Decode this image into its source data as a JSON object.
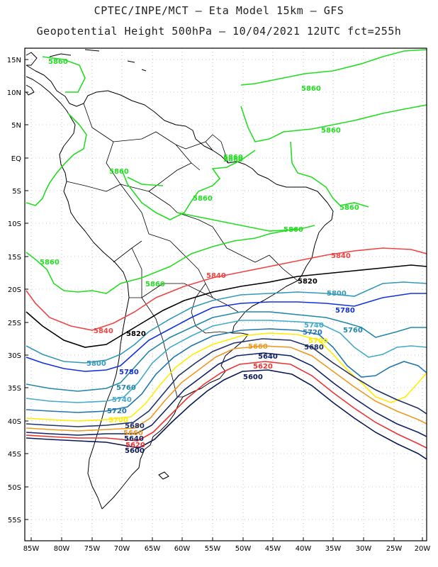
{
  "header": {
    "title_line1": "CPTEC/INPE/MCT –  Eta Model 15km – GFS",
    "title_line2": "Geopotential Height 500hPa – 10/04/2021 12UTC fct=255h"
  },
  "axes": {
    "lon_labels": [
      "85W",
      "80W",
      "75W",
      "70W",
      "65W",
      "60W",
      "55W",
      "50W",
      "45W",
      "40W",
      "35W",
      "30W",
      "25W",
      "20W"
    ],
    "lat_labels": [
      "15N",
      "10N",
      "5N",
      "EQ",
      "5S",
      "10S",
      "15S",
      "20S",
      "25S",
      "30S",
      "35S",
      "40S",
      "45S",
      "50S",
      "55S"
    ]
  },
  "colors": {
    "5860": "#22dd22",
    "5840": "#ee4444",
    "5820": "#000000",
    "5800": "#3399bb",
    "5780": "#1133dd",
    "5760": "#2288aa",
    "5740": "#44aacc",
    "5720": "#2277aa",
    "5700": "#ffee00",
    "5680": "#223366",
    "5660": "#ee9922",
    "5640": "#112266",
    "5620": "#ee3333",
    "5600": "#0a1a55",
    "coast": "#000000",
    "grid": "#999999"
  },
  "contour_labels": [
    {
      "text": "5860",
      "level": "5860"
    },
    {
      "text": "5860",
      "level": "5860"
    },
    {
      "text": "5860",
      "level": "5860"
    },
    {
      "text": "5860",
      "level": "5860"
    },
    {
      "text": "5860",
      "level": "5860"
    },
    {
      "text": "5860",
      "level": "5860"
    },
    {
      "text": "5860",
      "level": "5860"
    },
    {
      "text": "5860",
      "level": "5860"
    },
    {
      "text": "5860",
      "level": "5860"
    },
    {
      "text": "5860",
      "level": "5860"
    },
    {
      "text": "5860",
      "level": "5860"
    },
    {
      "text": "5840",
      "level": "5840"
    },
    {
      "text": "5840",
      "level": "5840"
    },
    {
      "text": "5840",
      "level": "5840"
    },
    {
      "text": "5820",
      "level": "5820"
    },
    {
      "text": "5820",
      "level": "5820"
    },
    {
      "text": "5800",
      "level": "5800"
    },
    {
      "text": "5800",
      "level": "5800"
    },
    {
      "text": "5780",
      "level": "5780"
    },
    {
      "text": "5780",
      "level": "5780"
    },
    {
      "text": "5760",
      "level": "5760"
    },
    {
      "text": "5760",
      "level": "5760"
    },
    {
      "text": "5740",
      "level": "5740"
    },
    {
      "text": "5740",
      "level": "5740"
    },
    {
      "text": "5720",
      "level": "5720"
    },
    {
      "text": "5720",
      "level": "5720"
    },
    {
      "text": "5700",
      "level": "5700"
    },
    {
      "text": "5700",
      "level": "5700"
    },
    {
      "text": "5680",
      "level": "5680"
    },
    {
      "text": "5680",
      "level": "5680"
    },
    {
      "text": "5660",
      "level": "5660"
    },
    {
      "text": "5660",
      "level": "5660"
    },
    {
      "text": "5640",
      "level": "5640"
    },
    {
      "text": "5640",
      "level": "5640"
    },
    {
      "text": "5620",
      "level": "5620"
    },
    {
      "text": "5620",
      "level": "5620"
    },
    {
      "text": "5600",
      "level": "5600"
    },
    {
      "text": "5600",
      "level": "5600"
    }
  ]
}
